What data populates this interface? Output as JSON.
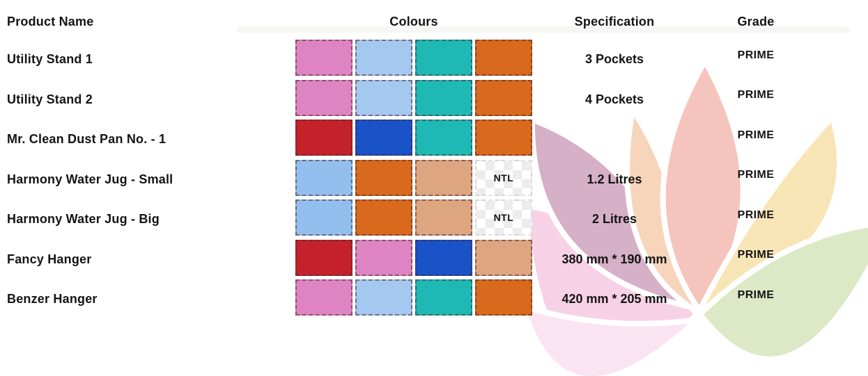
{
  "header": {
    "product_name": "Product Name",
    "colours": "Colours",
    "specification": "Specification",
    "grade": "Grade"
  },
  "rows": [
    {
      "name": "Utility Stand 1",
      "colours": [
        "orchid-pink",
        "light-blue",
        "teal",
        "orange"
      ],
      "specification": "3 Pockets",
      "grade": "PRIME"
    },
    {
      "name": "Utility Stand 2",
      "colours": [
        "orchid-pink",
        "light-blue",
        "teal",
        "orange"
      ],
      "specification": "4 Pockets",
      "grade": "PRIME"
    },
    {
      "name": "Mr. Clean Dust Pan No. - 1",
      "colours": [
        "red",
        "royal-blue",
        "teal",
        "orange"
      ],
      "specification": "",
      "grade": "PRIME"
    },
    {
      "name": "Harmony Water Jug - Small",
      "colours": [
        "sky-blue",
        "orange",
        "tan",
        "NTL"
      ],
      "specification": "1.2 Litres",
      "grade": "PRIME"
    },
    {
      "name": "Harmony Water Jug - Big",
      "colours": [
        "sky-blue",
        "orange",
        "tan",
        "NTL"
      ],
      "specification": "2 Litres",
      "grade": "PRIME"
    },
    {
      "name": "Fancy Hanger",
      "colours": [
        "red",
        "orchid-pink",
        "royal-blue",
        "tan"
      ],
      "specification": "380 mm * 190 mm",
      "grade": "PRIME"
    },
    {
      "name": "Benzer Hanger",
      "colours": [
        "orchid-pink",
        "light-blue",
        "teal",
        "orange"
      ],
      "specification": "420 mm * 205 mm",
      "grade": "PRIME"
    }
  ],
  "ntl_label": "NTL",
  "swatch_palette": {
    "orchid-pink": "#df84c2",
    "light-blue": "#a5c8f1",
    "teal": "#1fb9b5",
    "orange": "#d9691d",
    "red": "#c4222a",
    "royal-blue": "#1a52c8",
    "sky-blue": "#92bfee",
    "tan": "#dda680"
  },
  "watermark_colors": {
    "pink": "#f7d2e6",
    "pink_light": "#fbe4f1",
    "mauve": "#d5b0c6",
    "peach": "#f6d5bb",
    "salmon": "#f5c4bc",
    "yellow": "#f8e5b6",
    "green": "#dde8c7"
  }
}
